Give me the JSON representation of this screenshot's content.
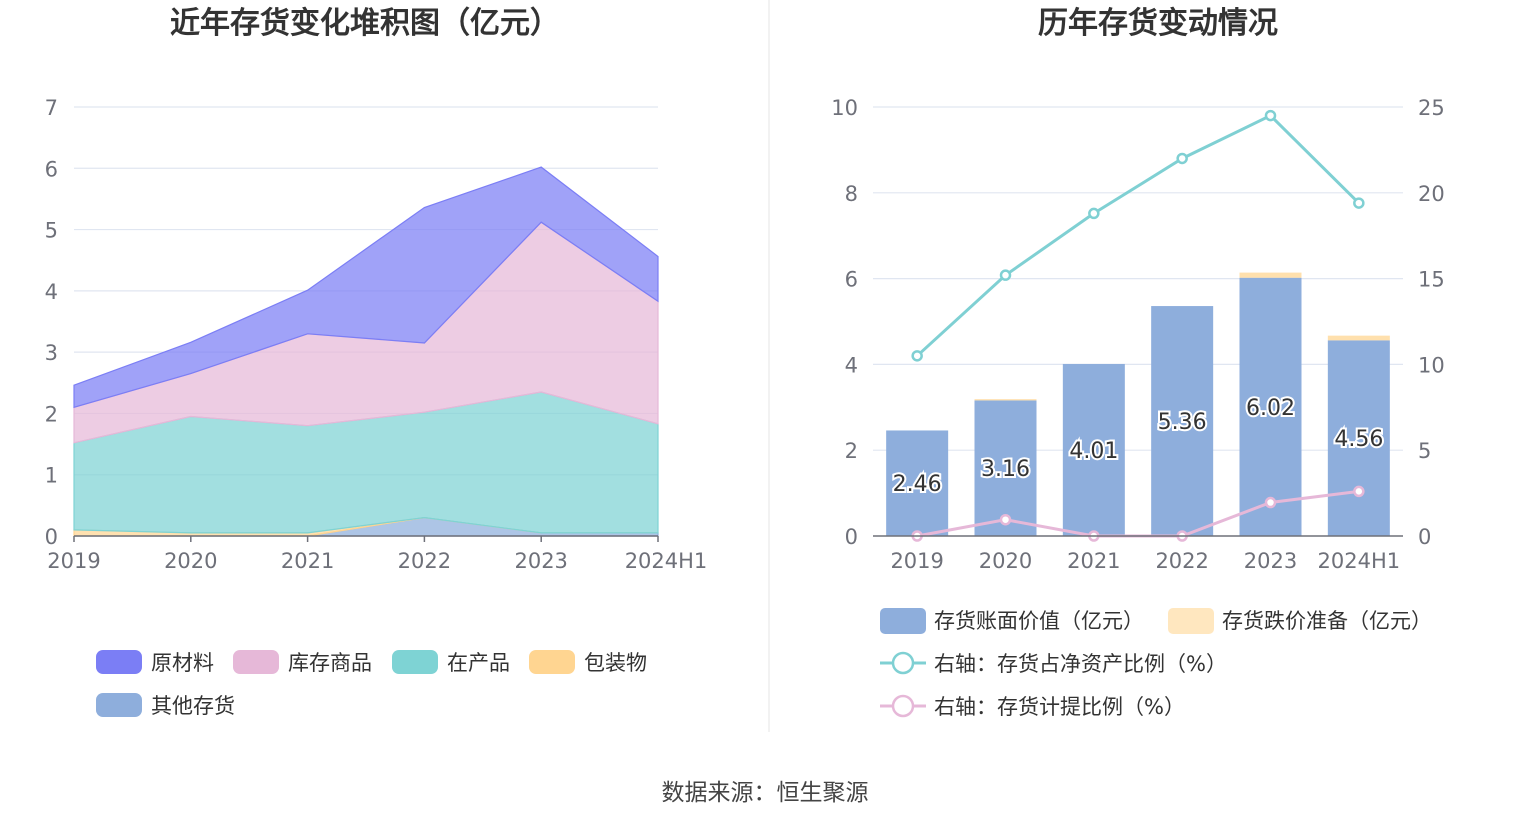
{
  "chart_data": [
    {
      "type": "area",
      "title": "近年存货变化堆积图（亿元）",
      "categories": [
        "2019",
        "2020",
        "2021",
        "2022",
        "2023",
        "2024H1"
      ],
      "ylim": [
        0,
        7
      ],
      "yticks": [
        "0",
        "1",
        "2",
        "3",
        "4",
        "5",
        "6",
        "7"
      ],
      "stacked": true,
      "grid": true,
      "legend_position": "bottom",
      "series": [
        {
          "name": "其他存货",
          "color": "#8eaedc",
          "values": [
            0.0,
            0.0,
            0.0,
            0.3,
            0.05,
            0.05
          ]
        },
        {
          "name": "包装物",
          "color": "#ffd591",
          "values": [
            0.1,
            0.05,
            0.05,
            0.0,
            0.0,
            0.0
          ]
        },
        {
          "name": "在产品",
          "color": "#7ed3d4",
          "values": [
            1.42,
            1.9,
            1.75,
            1.72,
            2.3,
            1.78
          ]
        },
        {
          "name": "库存商品",
          "color": "#e6b8d8",
          "values": [
            0.58,
            0.7,
            1.5,
            1.13,
            2.77,
            2.0
          ]
        },
        {
          "name": "原材料",
          "color": "#7b7ef5",
          "values": [
            0.36,
            0.51,
            0.71,
            2.21,
            0.9,
            0.73
          ]
        }
      ]
    },
    {
      "type": "bar",
      "title": "历年存货变动情况",
      "categories": [
        "2019",
        "2020",
        "2021",
        "2022",
        "2023",
        "2024H1"
      ],
      "ylim": [
        0,
        10
      ],
      "yticks": [
        "0",
        "2",
        "4",
        "6",
        "8",
        "10"
      ],
      "y2lim": [
        0,
        25
      ],
      "y2ticks": [
        "0",
        "5",
        "10",
        "15",
        "20",
        "25"
      ],
      "grid": true,
      "legend_position": "bottom",
      "bar_series": [
        {
          "name": "存货账面价值（亿元）",
          "color": "#8eaedc",
          "values": [
            2.46,
            3.16,
            4.01,
            5.36,
            6.02,
            4.56
          ],
          "labels": [
            "2.46",
            "3.16",
            "4.01",
            "5.36",
            "6.02",
            "4.56"
          ]
        },
        {
          "name": "存货跌价准备（亿元）",
          "color": "#ffe7bf",
          "values": [
            0.0,
            0.03,
            0.0,
            0.0,
            0.12,
            0.11
          ]
        }
      ],
      "line_series": [
        {
          "name": "右轴：存货占净资产比例（%）",
          "color": "#7fd0d3",
          "values": [
            10.5,
            15.2,
            18.8,
            22.0,
            24.5,
            19.4
          ]
        },
        {
          "name": "右轴：存货计提比例（%）",
          "color": "#e6b8d8",
          "values": [
            0.0,
            0.95,
            0.0,
            0.0,
            1.95,
            2.6
          ]
        }
      ]
    }
  ],
  "footer": {
    "source": "数据来源：恒生聚源"
  }
}
